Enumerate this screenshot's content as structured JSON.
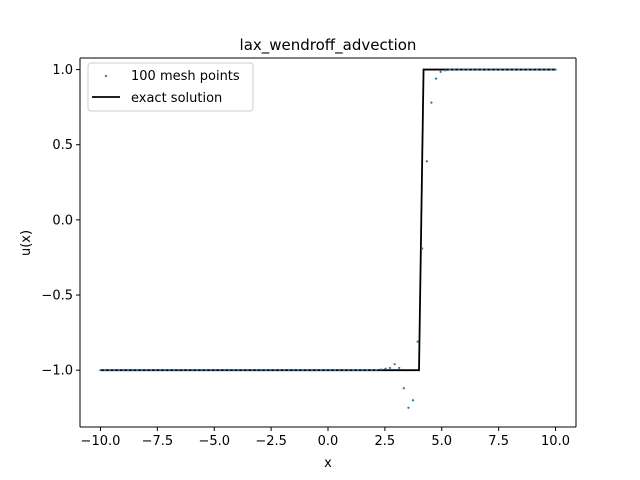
{
  "chart_data": {
    "type": "scatter",
    "title": "lax_wendroff_advection",
    "xlabel": "x",
    "ylabel": "u(x)",
    "xlim": [
      -10.9,
      10.9
    ],
    "ylim": [
      -1.378,
      1.077
    ],
    "xticks": [
      -10.0,
      -7.5,
      -5.0,
      -2.5,
      0.0,
      2.5,
      5.0,
      7.5,
      10.0
    ],
    "xtick_labels": [
      "−10.0",
      "−7.5",
      "−5.0",
      "−2.5",
      "0.0",
      "2.5",
      "5.0",
      "7.5",
      "10.0"
    ],
    "yticks": [
      -1.0,
      -0.5,
      0.0,
      0.5,
      1.0
    ],
    "ytick_labels": [
      "−1.0",
      "−0.5",
      "0.0",
      "0.5",
      "1.0"
    ],
    "grid": false,
    "legend_position": "top-left",
    "series": [
      {
        "name": "100 mesh points",
        "kind": "scatter",
        "color": "#1f77b4",
        "x_range": [
          -10.0,
          10.0
        ],
        "count": 100,
        "y_by_index": {
          "default_left": -1.0,
          "default_right": 1.0,
          "switch_index": 71,
          "overrides": {
            "59": -1.0,
            "60": -1.0,
            "61": -0.995,
            "62": -0.99,
            "63": -0.985,
            "64": -0.96,
            "65": -0.985,
            "66": -1.12,
            "67": -1.25,
            "68": -1.2,
            "69": -0.81,
            "70": -0.19,
            "71": 0.39,
            "72": 0.78,
            "73": 0.94,
            "74": 0.985,
            "75": 0.995
          }
        }
      },
      {
        "name": "exact solution",
        "kind": "line",
        "color": "#000000",
        "x": [
          -10.0,
          4.0,
          4.2,
          10.0
        ],
        "y": [
          -1.0,
          -1.0,
          1.0,
          1.0
        ]
      }
    ]
  }
}
